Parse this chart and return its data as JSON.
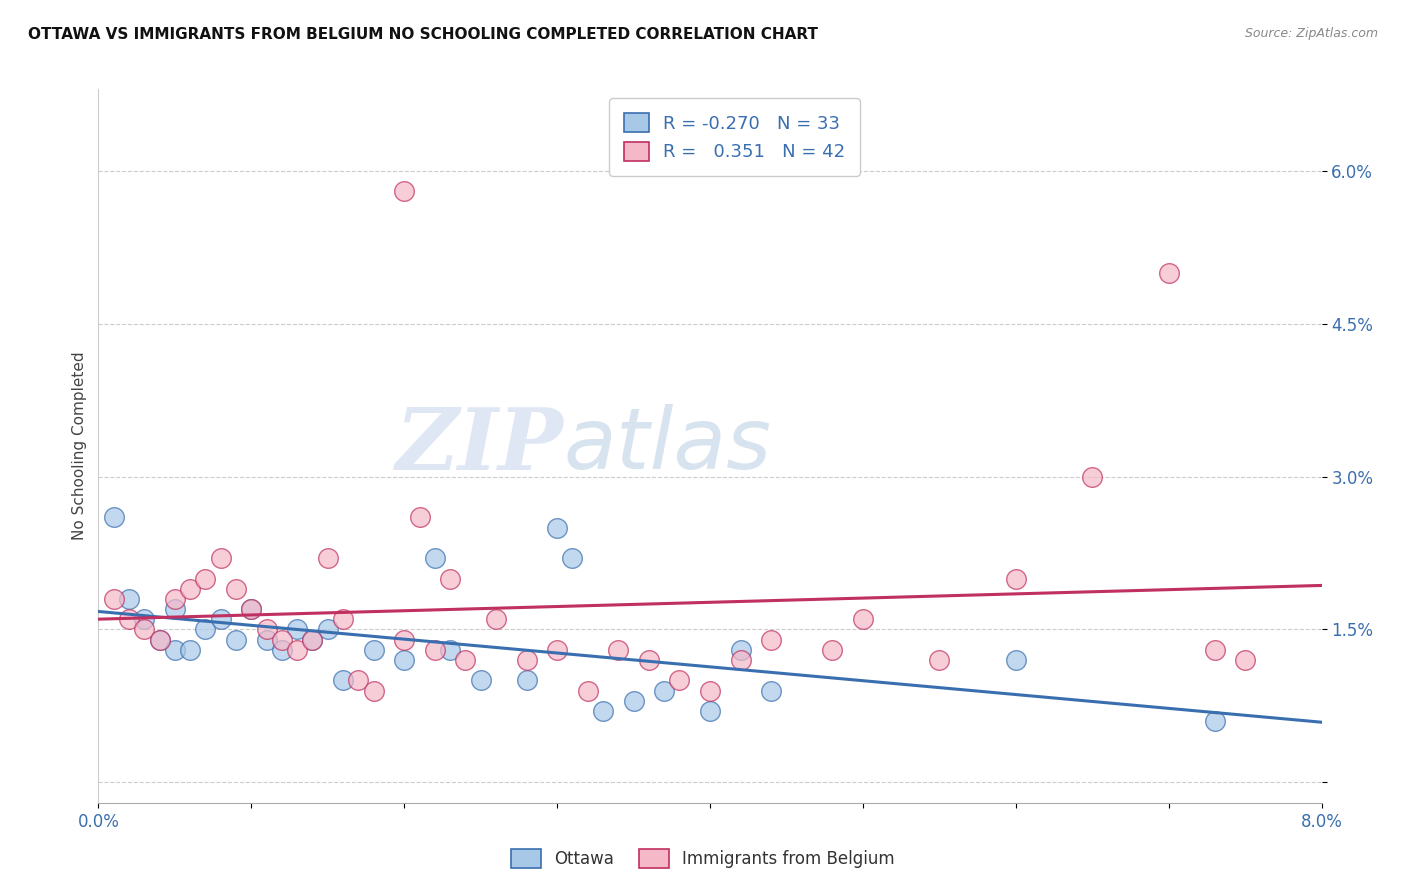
{
  "title": "OTTAWA VS IMMIGRANTS FROM BELGIUM NO SCHOOLING COMPLETED CORRELATION CHART",
  "source": "Source: ZipAtlas.com",
  "ylabel": "No Schooling Completed",
  "xlim": [
    0.0,
    0.08
  ],
  "ylim": [
    -0.002,
    0.068
  ],
  "yticks": [
    0.0,
    0.015,
    0.03,
    0.045,
    0.06
  ],
  "ytick_labels": [
    "",
    "1.5%",
    "3.0%",
    "4.5%",
    "6.0%"
  ],
  "xticks": [
    0.0,
    0.01,
    0.02,
    0.03,
    0.04,
    0.05,
    0.06,
    0.07,
    0.08
  ],
  "xtick_labels": [
    "0.0%",
    "",
    "",
    "",
    "",
    "",
    "",
    "",
    "8.0%"
  ],
  "ottawa_R": "-0.270",
  "ottawa_N": "33",
  "belgium_R": "0.351",
  "belgium_N": "42",
  "blue_color": "#a8c8e8",
  "pink_color": "#f4b8c8",
  "blue_line_color": "#3a6faf",
  "pink_line_color": "#c03060",
  "watermark_zip": "ZIP",
  "watermark_atlas": "atlas",
  "ottawa_x": [
    0.001,
    0.002,
    0.003,
    0.004,
    0.005,
    0.005,
    0.006,
    0.007,
    0.008,
    0.009,
    0.01,
    0.011,
    0.012,
    0.013,
    0.014,
    0.015,
    0.016,
    0.018,
    0.02,
    0.022,
    0.023,
    0.025,
    0.028,
    0.03,
    0.031,
    0.033,
    0.035,
    0.037,
    0.04,
    0.042,
    0.044,
    0.06,
    0.073
  ],
  "ottawa_y": [
    0.026,
    0.018,
    0.016,
    0.014,
    0.013,
    0.017,
    0.013,
    0.015,
    0.016,
    0.014,
    0.017,
    0.014,
    0.013,
    0.015,
    0.014,
    0.015,
    0.01,
    0.013,
    0.012,
    0.022,
    0.013,
    0.01,
    0.01,
    0.025,
    0.022,
    0.007,
    0.008,
    0.009,
    0.007,
    0.013,
    0.009,
    0.012,
    0.006
  ],
  "belgium_x": [
    0.001,
    0.002,
    0.003,
    0.004,
    0.005,
    0.006,
    0.007,
    0.008,
    0.009,
    0.01,
    0.011,
    0.012,
    0.013,
    0.014,
    0.015,
    0.016,
    0.017,
    0.018,
    0.02,
    0.021,
    0.022,
    0.023,
    0.024,
    0.026,
    0.028,
    0.03,
    0.032,
    0.034,
    0.036,
    0.038,
    0.04,
    0.042,
    0.044,
    0.048,
    0.05,
    0.055,
    0.06,
    0.065,
    0.07,
    0.073,
    0.075,
    0.02
  ],
  "belgium_y": [
    0.018,
    0.016,
    0.015,
    0.014,
    0.018,
    0.019,
    0.02,
    0.022,
    0.019,
    0.017,
    0.015,
    0.014,
    0.013,
    0.014,
    0.022,
    0.016,
    0.01,
    0.009,
    0.014,
    0.026,
    0.013,
    0.02,
    0.012,
    0.016,
    0.012,
    0.013,
    0.009,
    0.013,
    0.012,
    0.01,
    0.009,
    0.012,
    0.014,
    0.013,
    0.016,
    0.012,
    0.02,
    0.03,
    0.05,
    0.013,
    0.012,
    0.058
  ]
}
